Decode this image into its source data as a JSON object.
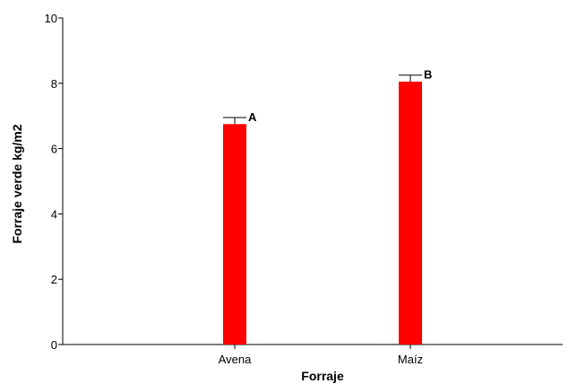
{
  "chart_data": {
    "type": "bar",
    "title": "",
    "xlabel": "Forraje",
    "ylabel": "Forraje verde kg/m2",
    "categories": [
      "Avena",
      "Maíz"
    ],
    "values": [
      6.75,
      8.05
    ],
    "error_upper": [
      6.95,
      8.25
    ],
    "significance_labels": [
      "A",
      "B"
    ],
    "ylim": [
      0,
      10
    ],
    "yticks": [
      "0",
      "2",
      "4",
      "6",
      "8",
      "10"
    ],
    "bar_color": "#ff0000",
    "grid": false
  }
}
